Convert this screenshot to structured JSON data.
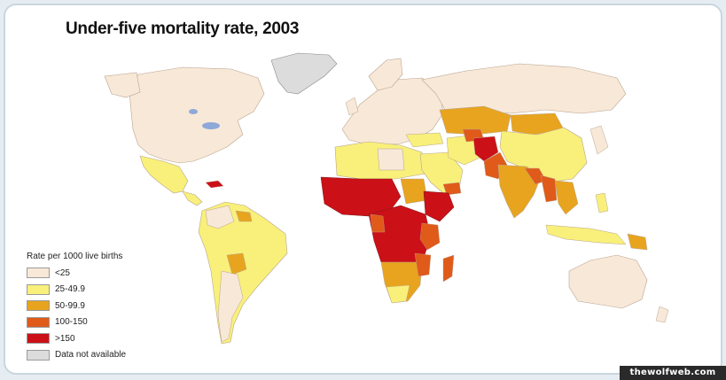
{
  "title": "Under-five mortality rate, 2003",
  "legend": {
    "title": "Rate per 1000 live births",
    "items": [
      {
        "label": "<25",
        "color": "#f8e8d8"
      },
      {
        "label": "25-49.9",
        "color": "#f8f07a"
      },
      {
        "label": "50-99.9",
        "color": "#e8a41e"
      },
      {
        "label": "100-150",
        "color": "#e05a1a"
      },
      {
        "label": ">150",
        "color": "#cc1018"
      },
      {
        "label": "Data not available",
        "color": "#dcdcdc"
      }
    ]
  },
  "watermark": "thewolfweb.com",
  "colors": {
    "ocean": "#ffffff",
    "border": "#c9d6df",
    "lake": "#8ea8d8"
  }
}
